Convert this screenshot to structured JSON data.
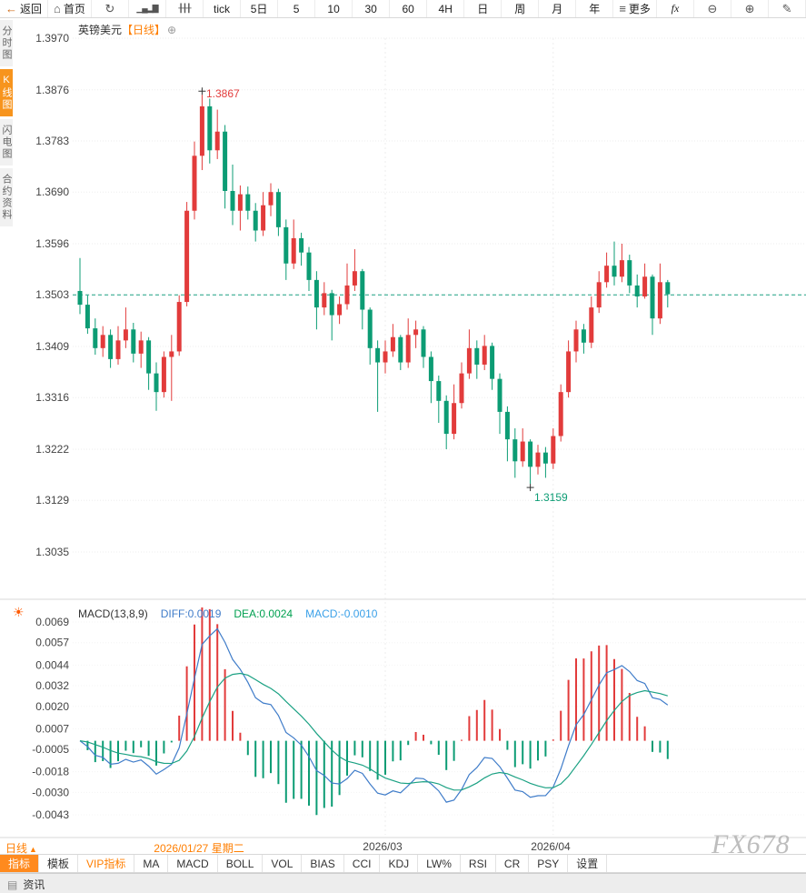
{
  "toolbar": {
    "items": [
      {
        "name": "back-button",
        "icon": "←",
        "label": "返回",
        "icon_class": "orange-ic"
      },
      {
        "name": "home-button",
        "icon": "⌂",
        "label": "首页"
      },
      {
        "name": "refresh-button",
        "icon": "↻"
      },
      {
        "name": "area-chart-button",
        "icon": "▁▄▂▇",
        "icon_class": "mini"
      },
      {
        "name": "candle-chart-button",
        "icon": "╂╂╂",
        "icon_class": "mini"
      },
      {
        "name": "tick-button",
        "label": "tick"
      },
      {
        "name": "period-5day-button",
        "label": "5日"
      },
      {
        "name": "period-5min-button",
        "label": "5"
      },
      {
        "name": "period-10min-button",
        "label": "10"
      },
      {
        "name": "period-30min-button",
        "label": "30"
      },
      {
        "name": "period-60min-button",
        "label": "60"
      },
      {
        "name": "period-4h-button",
        "label": "4H"
      },
      {
        "name": "period-day-button",
        "label": "日"
      },
      {
        "name": "period-week-button",
        "label": "周"
      },
      {
        "name": "period-month-button",
        "label": "月"
      },
      {
        "name": "period-year-button",
        "label": "年"
      },
      {
        "name": "more-button",
        "icon": "≡",
        "label": "更多"
      },
      {
        "name": "fx-button",
        "label": "fx",
        "label_class": "fx"
      },
      {
        "name": "zoom-out-button",
        "icon": "⊖"
      },
      {
        "name": "zoom-in-button",
        "icon": "⊕"
      },
      {
        "name": "draw-button",
        "icon": "✎"
      }
    ]
  },
  "sidebar": {
    "items": [
      {
        "name": "rail-time-chart",
        "label": "分时图",
        "active": false
      },
      {
        "name": "rail-candle-chart",
        "label": "K线图",
        "active": true
      },
      {
        "name": "rail-lightning-chart",
        "label": "闪电图",
        "active": false
      },
      {
        "name": "rail-contract-info",
        "label": "合约资料",
        "active": false
      }
    ]
  },
  "chart": {
    "title": "英镑美元",
    "period_tag": "【日线】",
    "plus_icon": "⊕"
  },
  "macd_panel": {
    "sun_icon": "☀",
    "title": "MACD(13,8,9)",
    "diff_text": "DIFF:0.0019",
    "dea_text": "DEA:0.0024",
    "macd_text": "MACD:-0.0010"
  },
  "bottom": {
    "period": "日线",
    "period_arrow": "▲",
    "tabs": [
      {
        "name": "tab-indicators",
        "label": "指标",
        "selected": true
      },
      {
        "name": "tab-templates",
        "label": "模板"
      },
      {
        "name": "tab-vip-indicators",
        "label": "VIP指标",
        "vip": true
      },
      {
        "name": "tab-ma",
        "label": "MA"
      },
      {
        "name": "tab-macd",
        "label": "MACD"
      },
      {
        "name": "tab-boll",
        "label": "BOLL"
      },
      {
        "name": "tab-vol",
        "label": "VOL"
      },
      {
        "name": "tab-bias",
        "label": "BIAS"
      },
      {
        "name": "tab-cci",
        "label": "CCI"
      },
      {
        "name": "tab-kdj",
        "label": "KDJ"
      },
      {
        "name": "tab-lw",
        "label": "LW%"
      },
      {
        "name": "tab-rsi",
        "label": "RSI"
      },
      {
        "name": "tab-cr",
        "label": "CR"
      },
      {
        "name": "tab-psy",
        "label": "PSY"
      },
      {
        "name": "tab-settings",
        "label": "设置"
      }
    ]
  },
  "watermark": "FX678",
  "statusbar": {
    "label": "资讯",
    "icon": "▤"
  },
  "colors": {
    "up": "#e23b3b",
    "down": "#0c9c74",
    "diff_line": "#3f7cc9",
    "dea_line": "#1ba183",
    "accent": "#ff7e00",
    "dashed": "#1ba183"
  },
  "chart_data": {
    "type": "candlestick",
    "symbol": "英镑美元",
    "interval": "日线",
    "price_axis_labels": [
      "1.3970",
      "1.3876",
      "1.3783",
      "1.3690",
      "1.3596",
      "1.3503",
      "1.3409",
      "1.3316",
      "1.3222",
      "1.3129",
      "1.3035"
    ],
    "price_axis_range": [
      1.3035,
      1.397
    ],
    "last_price_line": 1.3503,
    "high_marker": {
      "index": 16,
      "price": 1.3867,
      "label": "1.3867"
    },
    "low_marker": {
      "index": 59,
      "price": 1.3159,
      "label": "1.3159"
    },
    "crosshair_date": {
      "index": 16,
      "label": "2026/01/27 星期二"
    },
    "x_labels": [
      {
        "index": 40,
        "label": "2026/03"
      },
      {
        "index": 62,
        "label": "2026/04"
      }
    ],
    "candles": [
      [
        1.351,
        1.357,
        1.3468,
        1.3485
      ],
      [
        1.3485,
        1.3502,
        1.3432,
        1.3442
      ],
      [
        1.3442,
        1.346,
        1.3394,
        1.3406
      ],
      [
        1.3406,
        1.3446,
        1.339,
        1.343
      ],
      [
        1.343,
        1.344,
        1.337,
        1.3386
      ],
      [
        1.3386,
        1.3446,
        1.3376,
        1.342
      ],
      [
        1.342,
        1.348,
        1.3406,
        1.344
      ],
      [
        1.344,
        1.3452,
        1.338,
        1.3396
      ],
      [
        1.3396,
        1.3436,
        1.337,
        1.342
      ],
      [
        1.342,
        1.3426,
        1.333,
        1.336
      ],
      [
        1.336,
        1.338,
        1.3292,
        1.3326
      ],
      [
        1.3326,
        1.34,
        1.3316,
        1.339
      ],
      [
        1.339,
        1.343,
        1.331,
        1.34
      ],
      [
        1.34,
        1.3502,
        1.3392,
        1.349
      ],
      [
        1.349,
        1.3672,
        1.3482,
        1.3656
      ],
      [
        1.3656,
        1.3782,
        1.364,
        1.3756
      ],
      [
        1.3756,
        1.3867,
        1.373,
        1.3846
      ],
      [
        1.3846,
        1.386,
        1.3742,
        1.3766
      ],
      [
        1.3766,
        1.384,
        1.375,
        1.38
      ],
      [
        1.38,
        1.3812,
        1.366,
        1.3692
      ],
      [
        1.3692,
        1.374,
        1.363,
        1.3656
      ],
      [
        1.3656,
        1.3702,
        1.362,
        1.3686
      ],
      [
        1.3686,
        1.37,
        1.364,
        1.3656
      ],
      [
        1.3656,
        1.367,
        1.36,
        1.362
      ],
      [
        1.362,
        1.369,
        1.361,
        1.3666
      ],
      [
        1.3666,
        1.3706,
        1.3646,
        1.369
      ],
      [
        1.369,
        1.3696,
        1.361,
        1.3626
      ],
      [
        1.3626,
        1.364,
        1.353,
        1.356
      ],
      [
        1.356,
        1.364,
        1.355,
        1.3606
      ],
      [
        1.3606,
        1.3616,
        1.3556,
        1.358
      ],
      [
        1.358,
        1.359,
        1.351,
        1.353
      ],
      [
        1.353,
        1.3546,
        1.344,
        1.348
      ],
      [
        1.348,
        1.3526,
        1.3466,
        1.3506
      ],
      [
        1.3506,
        1.3512,
        1.342,
        1.3466
      ],
      [
        1.3466,
        1.35,
        1.345,
        1.3486
      ],
      [
        1.3486,
        1.356,
        1.3476,
        1.352
      ],
      [
        1.352,
        1.3586,
        1.351,
        1.3546
      ],
      [
        1.3546,
        1.355,
        1.344,
        1.3476
      ],
      [
        1.3476,
        1.348,
        1.3376,
        1.3406
      ],
      [
        1.3406,
        1.342,
        1.329,
        1.338
      ],
      [
        1.338,
        1.342,
        1.336,
        1.34
      ],
      [
        1.34,
        1.345,
        1.339,
        1.3426
      ],
      [
        1.3426,
        1.343,
        1.3366,
        1.338
      ],
      [
        1.338,
        1.346,
        1.337,
        1.343
      ],
      [
        1.343,
        1.3456,
        1.3406,
        1.344
      ],
      [
        1.344,
        1.3446,
        1.337,
        1.339
      ],
      [
        1.339,
        1.34,
        1.3306,
        1.3346
      ],
      [
        1.3346,
        1.3356,
        1.327,
        1.331
      ],
      [
        1.331,
        1.332,
        1.3222,
        1.325
      ],
      [
        1.325,
        1.334,
        1.324,
        1.3306
      ],
      [
        1.3306,
        1.338,
        1.3296,
        1.336
      ],
      [
        1.336,
        1.344,
        1.335,
        1.3406
      ],
      [
        1.3406,
        1.342,
        1.335,
        1.3376
      ],
      [
        1.3376,
        1.343,
        1.3366,
        1.341
      ],
      [
        1.341,
        1.3416,
        1.333,
        1.335
      ],
      [
        1.335,
        1.336,
        1.325,
        1.329
      ],
      [
        1.329,
        1.33,
        1.32,
        1.324
      ],
      [
        1.324,
        1.326,
        1.317,
        1.32
      ],
      [
        1.32,
        1.326,
        1.319,
        1.3236
      ],
      [
        1.3236,
        1.324,
        1.3159,
        1.319
      ],
      [
        1.319,
        1.323,
        1.3176,
        1.3216
      ],
      [
        1.3216,
        1.3226,
        1.317,
        1.3196
      ],
      [
        1.3196,
        1.326,
        1.3186,
        1.3246
      ],
      [
        1.3246,
        1.334,
        1.3236,
        1.3326
      ],
      [
        1.3326,
        1.342,
        1.3316,
        1.34
      ],
      [
        1.34,
        1.3456,
        1.338,
        1.344
      ],
      [
        1.344,
        1.345,
        1.3396,
        1.3416
      ],
      [
        1.3416,
        1.35,
        1.3406,
        1.348
      ],
      [
        1.348,
        1.3546,
        1.347,
        1.3526
      ],
      [
        1.3526,
        1.358,
        1.3516,
        1.3556
      ],
      [
        1.3556,
        1.36,
        1.352,
        1.3536
      ],
      [
        1.3536,
        1.3596,
        1.3526,
        1.3566
      ],
      [
        1.3566,
        1.3576,
        1.3506,
        1.352
      ],
      [
        1.352,
        1.354,
        1.348,
        1.35
      ],
      [
        1.35,
        1.356,
        1.3496,
        1.3536
      ],
      [
        1.3536,
        1.354,
        1.343,
        1.346
      ],
      [
        1.346,
        1.356,
        1.345,
        1.3526
      ],
      [
        1.3526,
        1.353,
        1.348,
        1.3504
      ]
    ],
    "indicator": {
      "name": "MACD",
      "params": [
        13,
        8,
        9
      ],
      "diff": 0.0019,
      "dea": 0.0024,
      "macd": -0.001,
      "axis_labels": [
        "0.0069",
        "0.0057",
        "0.0044",
        "0.0032",
        "0.0020",
        "0.0007",
        "-0.0005",
        "-0.0018",
        "-0.0030",
        "-0.0043"
      ],
      "axis_range": [
        -0.0043,
        0.0069
      ]
    }
  }
}
